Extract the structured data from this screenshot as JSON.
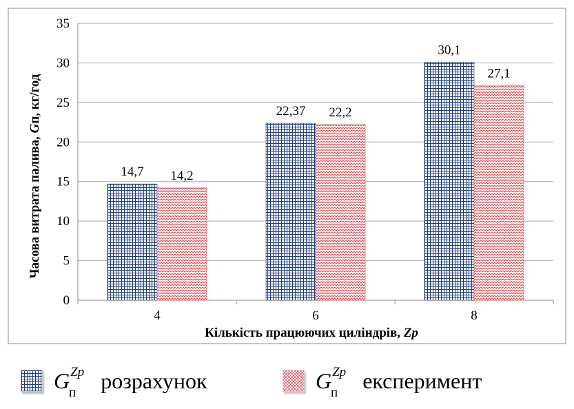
{
  "chart_data": {
    "type": "bar",
    "categories": [
      "4",
      "6",
      "8"
    ],
    "series": [
      {
        "name": "розрахунок",
        "values": [
          14.7,
          22.37,
          30.1
        ],
        "labels": [
          "14,7",
          "22,37",
          "30,1"
        ],
        "color": "#1f3e79",
        "pattern": "grid"
      },
      {
        "name": "експеримент",
        "values": [
          14.2,
          22.2,
          27.1
        ],
        "labels": [
          "14,2",
          "22,2",
          "27,1"
        ],
        "color": "#d9464e",
        "pattern": "zigzag"
      }
    ],
    "yticks": [
      "0",
      "5",
      "10",
      "15",
      "20",
      "25",
      "30",
      "35"
    ],
    "ylim": [
      0,
      35
    ],
    "ylabel_parts": [
      "Часова витрата палива, ",
      "G",
      "п",
      ", кг/год"
    ],
    "xlabel_parts": [
      "Кількість працюючих циліндрів, ",
      "Zp"
    ],
    "grid": true,
    "legend": "bottom"
  },
  "legend": {
    "symbol": "G",
    "superscript": "Zp",
    "subscript": "п",
    "items": [
      "розрахунок",
      "експеримент"
    ]
  }
}
